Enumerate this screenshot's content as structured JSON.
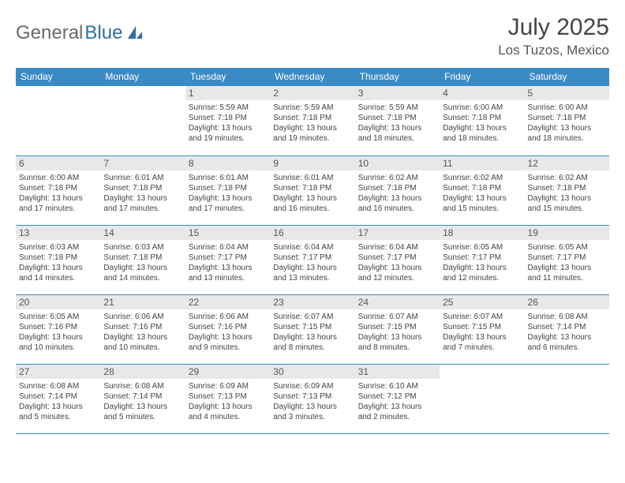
{
  "logo": {
    "part1": "General",
    "part2": "Blue"
  },
  "title": "July 2025",
  "location": "Los Tuzos, Mexico",
  "theme": {
    "header_bg": "#3b8ac4",
    "header_text": "#ffffff",
    "daynum_bg": "#e8e8e8",
    "border": "#3b8ac4",
    "logo_gray": "#6b6b6b",
    "logo_blue": "#2f6fa8"
  },
  "dayHeaders": [
    "Sunday",
    "Monday",
    "Tuesday",
    "Wednesday",
    "Thursday",
    "Friday",
    "Saturday"
  ],
  "weeks": [
    [
      {
        "n": "",
        "sr": "",
        "ss": "",
        "dl": ""
      },
      {
        "n": "",
        "sr": "",
        "ss": "",
        "dl": ""
      },
      {
        "n": "1",
        "sr": "5:59 AM",
        "ss": "7:18 PM",
        "dl": "13 hours and 19 minutes."
      },
      {
        "n": "2",
        "sr": "5:59 AM",
        "ss": "7:18 PM",
        "dl": "13 hours and 19 minutes."
      },
      {
        "n": "3",
        "sr": "5:59 AM",
        "ss": "7:18 PM",
        "dl": "13 hours and 18 minutes."
      },
      {
        "n": "4",
        "sr": "6:00 AM",
        "ss": "7:18 PM",
        "dl": "13 hours and 18 minutes."
      },
      {
        "n": "5",
        "sr": "6:00 AM",
        "ss": "7:18 PM",
        "dl": "13 hours and 18 minutes."
      }
    ],
    [
      {
        "n": "6",
        "sr": "6:00 AM",
        "ss": "7:18 PM",
        "dl": "13 hours and 17 minutes."
      },
      {
        "n": "7",
        "sr": "6:01 AM",
        "ss": "7:18 PM",
        "dl": "13 hours and 17 minutes."
      },
      {
        "n": "8",
        "sr": "6:01 AM",
        "ss": "7:18 PM",
        "dl": "13 hours and 17 minutes."
      },
      {
        "n": "9",
        "sr": "6:01 AM",
        "ss": "7:18 PM",
        "dl": "13 hours and 16 minutes."
      },
      {
        "n": "10",
        "sr": "6:02 AM",
        "ss": "7:18 PM",
        "dl": "13 hours and 16 minutes."
      },
      {
        "n": "11",
        "sr": "6:02 AM",
        "ss": "7:18 PM",
        "dl": "13 hours and 15 minutes."
      },
      {
        "n": "12",
        "sr": "6:02 AM",
        "ss": "7:18 PM",
        "dl": "13 hours and 15 minutes."
      }
    ],
    [
      {
        "n": "13",
        "sr": "6:03 AM",
        "ss": "7:18 PM",
        "dl": "13 hours and 14 minutes."
      },
      {
        "n": "14",
        "sr": "6:03 AM",
        "ss": "7:18 PM",
        "dl": "13 hours and 14 minutes."
      },
      {
        "n": "15",
        "sr": "6:04 AM",
        "ss": "7:17 PM",
        "dl": "13 hours and 13 minutes."
      },
      {
        "n": "16",
        "sr": "6:04 AM",
        "ss": "7:17 PM",
        "dl": "13 hours and 13 minutes."
      },
      {
        "n": "17",
        "sr": "6:04 AM",
        "ss": "7:17 PM",
        "dl": "13 hours and 12 minutes."
      },
      {
        "n": "18",
        "sr": "6:05 AM",
        "ss": "7:17 PM",
        "dl": "13 hours and 12 minutes."
      },
      {
        "n": "19",
        "sr": "6:05 AM",
        "ss": "7:17 PM",
        "dl": "13 hours and 11 minutes."
      }
    ],
    [
      {
        "n": "20",
        "sr": "6:05 AM",
        "ss": "7:16 PM",
        "dl": "13 hours and 10 minutes."
      },
      {
        "n": "21",
        "sr": "6:06 AM",
        "ss": "7:16 PM",
        "dl": "13 hours and 10 minutes."
      },
      {
        "n": "22",
        "sr": "6:06 AM",
        "ss": "7:16 PM",
        "dl": "13 hours and 9 minutes."
      },
      {
        "n": "23",
        "sr": "6:07 AM",
        "ss": "7:15 PM",
        "dl": "13 hours and 8 minutes."
      },
      {
        "n": "24",
        "sr": "6:07 AM",
        "ss": "7:15 PM",
        "dl": "13 hours and 8 minutes."
      },
      {
        "n": "25",
        "sr": "6:07 AM",
        "ss": "7:15 PM",
        "dl": "13 hours and 7 minutes."
      },
      {
        "n": "26",
        "sr": "6:08 AM",
        "ss": "7:14 PM",
        "dl": "13 hours and 6 minutes."
      }
    ],
    [
      {
        "n": "27",
        "sr": "6:08 AM",
        "ss": "7:14 PM",
        "dl": "13 hours and 5 minutes."
      },
      {
        "n": "28",
        "sr": "6:08 AM",
        "ss": "7:14 PM",
        "dl": "13 hours and 5 minutes."
      },
      {
        "n": "29",
        "sr": "6:09 AM",
        "ss": "7:13 PM",
        "dl": "13 hours and 4 minutes."
      },
      {
        "n": "30",
        "sr": "6:09 AM",
        "ss": "7:13 PM",
        "dl": "13 hours and 3 minutes."
      },
      {
        "n": "31",
        "sr": "6:10 AM",
        "ss": "7:12 PM",
        "dl": "13 hours and 2 minutes."
      },
      {
        "n": "",
        "sr": "",
        "ss": "",
        "dl": ""
      },
      {
        "n": "",
        "sr": "",
        "ss": "",
        "dl": ""
      }
    ]
  ],
  "labels": {
    "sunrise": "Sunrise: ",
    "sunset": "Sunset: ",
    "daylight": "Daylight: "
  }
}
